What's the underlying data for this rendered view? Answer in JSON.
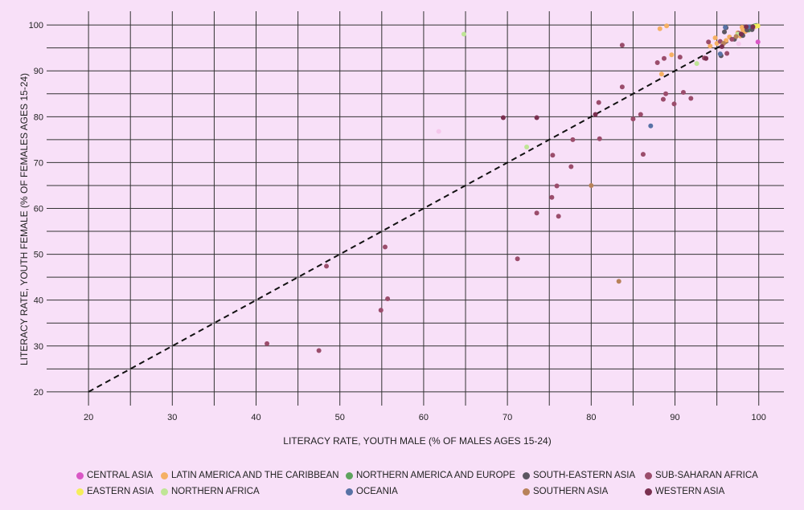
{
  "chart_data": {
    "type": "scatter",
    "xlabel": "LITERACY RATE, YOUTH MALE (% OF MALES AGES 15-24)",
    "ylabel": "LITERACY RATE, YOUTH FEMALE (% OF FEMALES AGES 15-24)",
    "xlim": [
      15,
      103
    ],
    "ylim": [
      17,
      103
    ],
    "xticks": [
      20,
      30,
      40,
      50,
      60,
      70,
      80,
      90,
      100
    ],
    "yticks": [
      20,
      30,
      40,
      50,
      60,
      70,
      80,
      90,
      100
    ],
    "reference_line": {
      "x": [
        20,
        100
      ],
      "y": [
        20,
        100
      ],
      "style": "dashed"
    },
    "legend_position": "bottom",
    "series": [
      {
        "name": "CENTRAL ASIA",
        "color": "#d957c5",
        "points": [
          [
            99.8,
            99.9
          ],
          [
            99.7,
            99.8
          ],
          [
            99.9,
            96.3
          ],
          [
            99.5,
            99.6
          ]
        ]
      },
      {
        "name": "LATIN AMERICA AND THE CARIBBEAN",
        "color": "#f5b064",
        "points": [
          [
            88.2,
            99.2
          ],
          [
            89.0,
            99.8
          ],
          [
            89.6,
            93.5
          ],
          [
            94.8,
            97.2
          ],
          [
            96.1,
            96.6
          ],
          [
            97.5,
            98.3
          ],
          [
            98.1,
            98.9
          ],
          [
            98.5,
            99.2
          ],
          [
            95.0,
            96.0
          ],
          [
            96.5,
            97.4
          ],
          [
            97.8,
            97.6
          ],
          [
            98.4,
            98.6
          ],
          [
            98.9,
            99.3
          ],
          [
            88.4,
            89.3
          ],
          [
            94.2,
            95.4
          ],
          [
            98.0,
            99.5
          ]
        ]
      },
      {
        "name": "NORTHERN AMERICA AND EUROPE",
        "color": "#5ea35e",
        "points": [
          [
            99.0,
            99.5
          ],
          [
            99.3,
            99.7
          ],
          [
            98.6,
            99.0
          ],
          [
            99.5,
            99.8
          ],
          [
            98.8,
            98.9
          ],
          [
            99.7,
            99.9
          ],
          [
            99.2,
            99.2
          ]
        ]
      },
      {
        "name": "SOUTH-EASTERN ASIA",
        "color": "#5b5661",
        "points": [
          [
            95.9,
            98.5
          ],
          [
            97.1,
            96.9
          ],
          [
            98.1,
            97.7
          ],
          [
            96.1,
            99.4
          ],
          [
            95.5,
            93.3
          ],
          [
            98.6,
            98.9
          ],
          [
            99.2,
            99.0
          ]
        ]
      },
      {
        "name": "SUB-SAHARAN AFRICA",
        "color": "#9b4d6c",
        "points": [
          [
            41.3,
            30.5
          ],
          [
            47.5,
            29.0
          ],
          [
            48.4,
            47.4
          ],
          [
            54.9,
            37.8
          ],
          [
            55.4,
            51.6
          ],
          [
            55.7,
            40.3
          ],
          [
            71.2,
            49.0
          ],
          [
            73.5,
            59.0
          ],
          [
            75.3,
            62.4
          ],
          [
            75.4,
            71.6
          ],
          [
            76.1,
            58.3
          ],
          [
            77.6,
            69.1
          ],
          [
            77.8,
            75.0
          ],
          [
            80.9,
            83.1
          ],
          [
            81.0,
            75.2
          ],
          [
            83.7,
            86.5
          ],
          [
            83.7,
            95.6
          ],
          [
            85.0,
            79.5
          ],
          [
            85.9,
            80.5
          ],
          [
            86.2,
            71.8
          ],
          [
            87.9,
            91.8
          ],
          [
            88.6,
            83.8
          ],
          [
            88.7,
            92.7
          ],
          [
            88.9,
            85.0
          ],
          [
            89.9,
            82.8
          ],
          [
            90.6,
            93.0
          ],
          [
            91.0,
            85.3
          ],
          [
            91.9,
            84.0
          ],
          [
            93.5,
            92.8
          ],
          [
            94.0,
            96.3
          ],
          [
            95.4,
            96.4
          ],
          [
            96.2,
            93.8
          ],
          [
            96.8,
            96.9
          ],
          [
            97.6,
            98.2
          ],
          [
            98.8,
            99.6
          ],
          [
            75.9,
            64.9
          ]
        ]
      },
      {
        "name": "EASTERN ASIA",
        "color": "#f5ee5c",
        "points": [
          [
            99.6,
            99.7
          ],
          [
            99.9,
            99.8
          ]
        ]
      },
      {
        "name": "NORTHERN AFRICA",
        "color": "#bfe596",
        "points": [
          [
            64.8,
            98.0
          ],
          [
            72.3,
            73.4
          ],
          [
            92.6,
            91.6
          ],
          [
            97.5,
            98.0
          ]
        ]
      },
      {
        "name": "OCEANIA",
        "color": "#5872a6",
        "points": [
          [
            87.1,
            78.0
          ],
          [
            95.4,
            93.7
          ],
          [
            96.0,
            99.5
          ],
          [
            98.8,
            99.6
          ]
        ]
      },
      {
        "name": "SOUTHERN ASIA",
        "color": "#b8825a",
        "points": [
          [
            80.0,
            65.0
          ],
          [
            83.3,
            44.1
          ],
          [
            95.8,
            96.0
          ],
          [
            97.3,
            97.5
          ]
        ]
      },
      {
        "name": "WESTERN ASIA",
        "color": "#7a3050",
        "points": [
          [
            69.5,
            79.8
          ],
          [
            73.5,
            79.8
          ],
          [
            80.5,
            80.5
          ],
          [
            93.7,
            92.7
          ],
          [
            95.6,
            95.3
          ],
          [
            97.9,
            98.0
          ],
          [
            98.5,
            99.6
          ],
          [
            99.3,
            99.6
          ]
        ]
      },
      {
        "name": "",
        "color": "#f5c8ec",
        "points": [
          [
            61.8,
            76.8
          ],
          [
            97.6,
            95.9
          ]
        ]
      }
    ],
    "legend_rows": [
      [
        "CENTRAL ASIA",
        "LATIN AMERICA AND THE CARIBBEAN",
        "NORTHERN AMERICA AND EUROPE",
        "SOUTH-EASTERN ASIA",
        "SUB-SAHARAN AFRICA"
      ],
      [
        "EASTERN ASIA",
        "NORTHERN AFRICA",
        "OCEANIA",
        "SOUTHERN ASIA",
        "WESTERN ASIA"
      ]
    ]
  }
}
